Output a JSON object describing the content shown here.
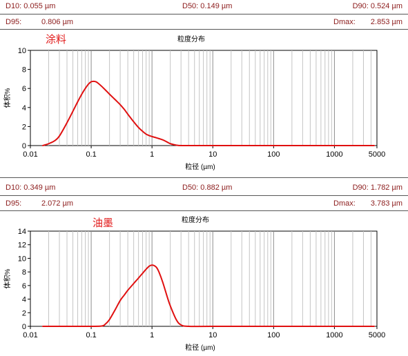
{
  "panels": [
    {
      "stats": {
        "d10": "D10: 0.055  µm",
        "d50": "D50: 0.149  µm",
        "d90": "D90: 0.524  µm",
        "d95_label": "D95:",
        "d95_value": "0.806  µm",
        "dmax_label": "Dmax:",
        "dmax_value": "2.853  µm"
      },
      "sample_label": "涂料"
    },
    {
      "stats": {
        "d10": "D10: 0.349  µm",
        "d50": "D50: 0.882  µm",
        "d90": "D90: 1.782  µm",
        "d95_label": "D95:",
        "d95_value": "2.072  µm",
        "dmax_label": "Dmax:",
        "dmax_value": "3.783  µm"
      },
      "sample_label": "油墨"
    }
  ],
  "chart_data": [
    {
      "type": "line",
      "title": "粒度分布",
      "xlabel": "粒径 (µm)",
      "ylabel": "体积%",
      "x_scale": "log",
      "xlim": [
        0.01,
        5000
      ],
      "ylim": [
        0,
        10
      ],
      "x_ticks": [
        0.01,
        0.1,
        1,
        10,
        100,
        1000,
        5000
      ],
      "x_tick_labels": [
        "0.01",
        "0.1",
        "1",
        "10",
        "100",
        "1000",
        "5000"
      ],
      "y_ticks": [
        0,
        2,
        4,
        6,
        8,
        10
      ],
      "y_tick_labels": [
        "0",
        "2",
        "4",
        "6",
        "8",
        "10"
      ],
      "grid": "vertical-log",
      "line_color": "#e01010",
      "series": [
        {
          "x": [
            0.016,
            0.02,
            0.025,
            0.03,
            0.04,
            0.05,
            0.06,
            0.07,
            0.08,
            0.09,
            0.1,
            0.11,
            0.12,
            0.13,
            0.15,
            0.18,
            0.2,
            0.25,
            0.3,
            0.35,
            0.4,
            0.5,
            0.6,
            0.7,
            0.8,
            0.9,
            1.0,
            1.2,
            1.5,
            1.8,
            2.0,
            2.5,
            3.0,
            5.0,
            10,
            100,
            1000,
            4500
          ],
          "y": [
            0.0,
            0.2,
            0.5,
            1.0,
            2.4,
            3.6,
            4.6,
            5.4,
            6.0,
            6.45,
            6.7,
            6.75,
            6.7,
            6.55,
            6.2,
            5.7,
            5.4,
            4.8,
            4.3,
            3.8,
            3.3,
            2.5,
            1.9,
            1.5,
            1.2,
            1.05,
            0.95,
            0.8,
            0.6,
            0.35,
            0.2,
            0.05,
            0.0,
            0.0,
            0.0,
            0.0,
            0.0,
            0.0
          ]
        }
      ]
    },
    {
      "type": "line",
      "title": "粒度分布",
      "xlabel": "粒径 (µm)",
      "ylabel": "体积%",
      "x_scale": "log",
      "xlim": [
        0.01,
        5000
      ],
      "ylim": [
        0,
        14
      ],
      "x_ticks": [
        0.01,
        0.1,
        1,
        10,
        100,
        1000,
        5000
      ],
      "x_tick_labels": [
        "0.01",
        "0.1",
        "1",
        "10",
        "100",
        "1000",
        "5000"
      ],
      "y_ticks": [
        0,
        2,
        4,
        6,
        8,
        10,
        12,
        14
      ],
      "y_tick_labels": [
        "0",
        "2",
        "4",
        "6",
        "8",
        "10",
        "12",
        "14"
      ],
      "grid": "vertical-log",
      "line_color": "#e01010",
      "series": [
        {
          "x": [
            0.016,
            0.1,
            0.15,
            0.17,
            0.2,
            0.25,
            0.3,
            0.35,
            0.4,
            0.5,
            0.6,
            0.7,
            0.8,
            0.9,
            1.0,
            1.1,
            1.2,
            1.3,
            1.5,
            1.8,
            2.0,
            2.5,
            3.0,
            4.0,
            10,
            100,
            1000,
            4500
          ],
          "y": [
            0.0,
            0.0,
            0.05,
            0.3,
            1.0,
            2.5,
            3.8,
            4.6,
            5.3,
            6.3,
            7.1,
            7.8,
            8.4,
            8.85,
            9.0,
            8.9,
            8.6,
            8.0,
            6.5,
            4.2,
            3.0,
            1.0,
            0.2,
            0.0,
            0.0,
            0.0,
            0.0,
            0.0
          ]
        }
      ]
    }
  ]
}
